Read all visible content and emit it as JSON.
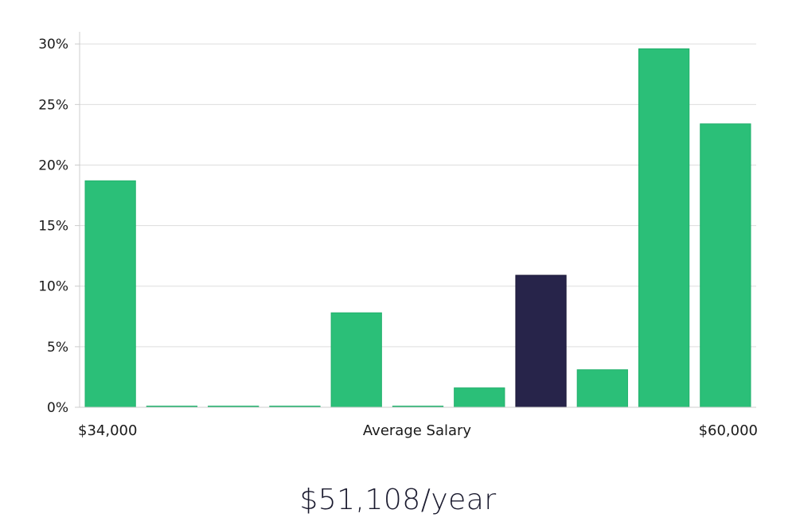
{
  "chart_data": {
    "type": "bar",
    "title": "",
    "xlabel": "Average Salary",
    "ylabel": "",
    "x_min_label": "$34,000",
    "x_max_label": "$60,000",
    "ylim": [
      0,
      31
    ],
    "yticks": [
      0,
      5,
      10,
      15,
      20,
      25,
      30
    ],
    "ytick_suffix": "%",
    "grid": true,
    "values": [
      18.7,
      0.05,
      0.05,
      0.05,
      7.8,
      0.05,
      1.6,
      10.9,
      3.1,
      29.6,
      23.4
    ],
    "highlight_index": 7,
    "colors": {
      "bar": "#2bbf78",
      "highlight": "#27244a",
      "grid": "#dddddd",
      "axis": "#cccccc"
    }
  },
  "caption": "$51,108/year"
}
